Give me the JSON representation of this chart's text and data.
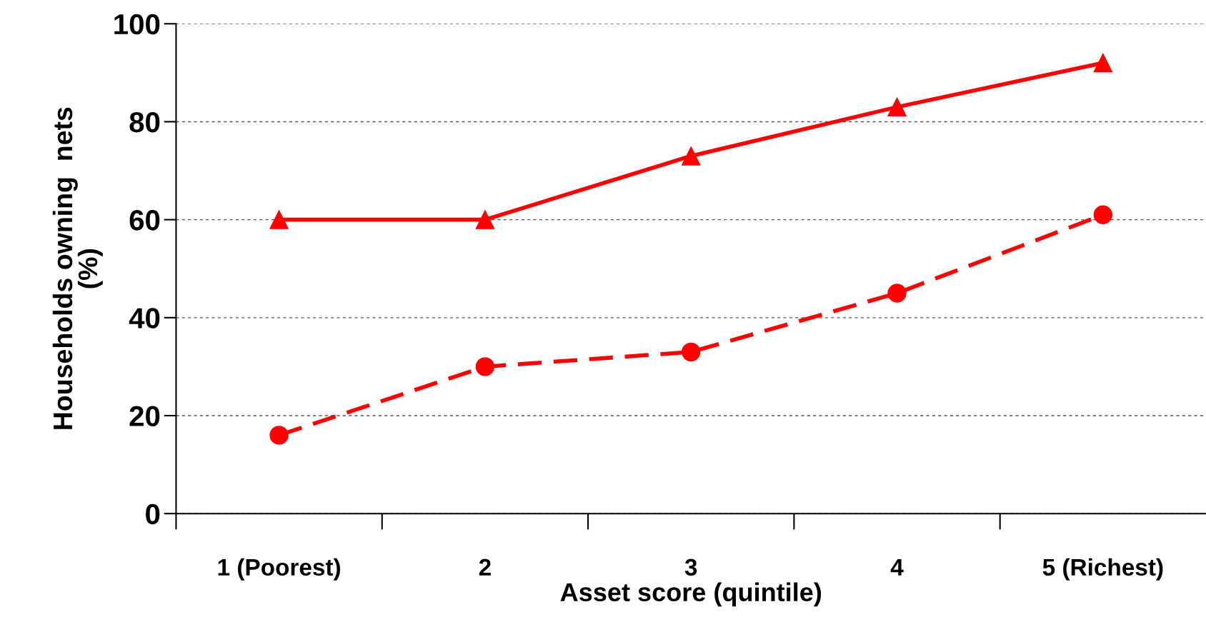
{
  "chart_data": {
    "type": "line",
    "xlabel": "Asset score (quintile)",
    "ylabel": "Households owning  nets\n(%)",
    "categories": [
      "1 (Poorest)",
      "2",
      "3",
      "4",
      "5 (Richest)"
    ],
    "series": [
      {
        "color": "#ff0000",
        "values": [
          60,
          60,
          73,
          83,
          92
        ],
        "marker": "triangle",
        "line_style": "solid"
      },
      {
        "color": "#ff0000",
        "values": [
          16,
          30,
          33,
          45,
          61
        ],
        "marker": "circle",
        "line_style": "dashed"
      }
    ],
    "ylim": [
      0,
      100
    ],
    "yticks": [
      0,
      20,
      40,
      60,
      80,
      100
    ],
    "grid": "y",
    "legend": false
  }
}
